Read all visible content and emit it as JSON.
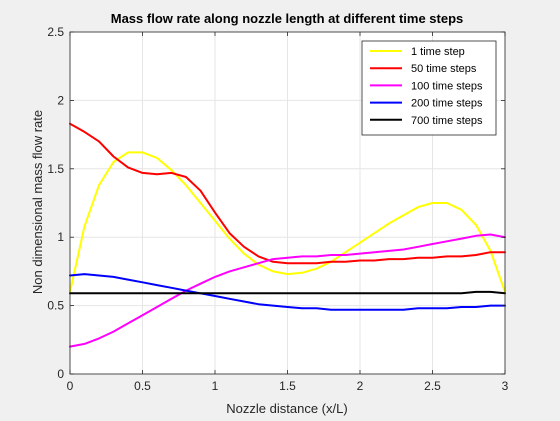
{
  "chart_data": {
    "type": "line",
    "title": "Mass flow rate along nozzle length at different time steps",
    "xlabel": "Nozzle distance (x/L)",
    "ylabel": "Non dimensional mass flow rate",
    "xlim": [
      0,
      3
    ],
    "ylim": [
      0,
      2.5
    ],
    "xticks": [
      "0",
      "0.5",
      "1",
      "1.5",
      "2",
      "2.5",
      "3"
    ],
    "yticks": [
      "0",
      "0.5",
      "1",
      "1.5",
      "2",
      "2.5"
    ],
    "grid": true,
    "legend_position": "top-right",
    "colors": {
      "figure_background": "#f0f0f0",
      "axes_background": "#ffffff",
      "grid": "#e6e6e6",
      "axis": "#262626"
    },
    "series": [
      {
        "name": "1 time step",
        "color": "#ffff00",
        "x": [
          0,
          0.1,
          0.2,
          0.3,
          0.4,
          0.5,
          0.6,
          0.7,
          0.8,
          0.9,
          1.0,
          1.1,
          1.2,
          1.3,
          1.4,
          1.5,
          1.6,
          1.7,
          1.8,
          1.9,
          2.0,
          2.1,
          2.2,
          2.3,
          2.4,
          2.5,
          2.6,
          2.7,
          2.8,
          2.9,
          3.0
        ],
        "y": [
          0.6,
          1.08,
          1.38,
          1.55,
          1.62,
          1.62,
          1.58,
          1.49,
          1.38,
          1.25,
          1.12,
          0.99,
          0.88,
          0.8,
          0.75,
          0.73,
          0.74,
          0.77,
          0.82,
          0.89,
          0.96,
          1.03,
          1.1,
          1.16,
          1.22,
          1.25,
          1.25,
          1.2,
          1.09,
          0.9,
          0.6
        ]
      },
      {
        "name": "50 time steps",
        "color": "#ff0000",
        "x": [
          0,
          0.1,
          0.2,
          0.3,
          0.4,
          0.5,
          0.6,
          0.7,
          0.8,
          0.9,
          1.0,
          1.1,
          1.2,
          1.3,
          1.4,
          1.5,
          1.6,
          1.7,
          1.8,
          1.9,
          2.0,
          2.1,
          2.2,
          2.3,
          2.4,
          2.5,
          2.6,
          2.7,
          2.8,
          2.9,
          3.0
        ],
        "y": [
          1.83,
          1.77,
          1.7,
          1.59,
          1.51,
          1.47,
          1.46,
          1.47,
          1.44,
          1.34,
          1.18,
          1.03,
          0.93,
          0.86,
          0.82,
          0.81,
          0.81,
          0.81,
          0.82,
          0.82,
          0.83,
          0.83,
          0.84,
          0.84,
          0.85,
          0.85,
          0.86,
          0.86,
          0.87,
          0.89,
          0.89
        ]
      },
      {
        "name": "100 time steps",
        "color": "#ff00ff",
        "x": [
          0,
          0.1,
          0.2,
          0.3,
          0.4,
          0.5,
          0.6,
          0.7,
          0.8,
          0.9,
          1.0,
          1.1,
          1.2,
          1.3,
          1.4,
          1.5,
          1.6,
          1.7,
          1.8,
          1.9,
          2.0,
          2.1,
          2.2,
          2.3,
          2.4,
          2.5,
          2.6,
          2.7,
          2.8,
          2.9,
          3.0
        ],
        "y": [
          0.2,
          0.22,
          0.26,
          0.31,
          0.37,
          0.43,
          0.49,
          0.55,
          0.61,
          0.66,
          0.71,
          0.75,
          0.78,
          0.81,
          0.84,
          0.85,
          0.86,
          0.86,
          0.87,
          0.87,
          0.88,
          0.89,
          0.9,
          0.91,
          0.93,
          0.95,
          0.97,
          0.99,
          1.01,
          1.02,
          1.0
        ]
      },
      {
        "name": "200 time steps",
        "color": "#0000ff",
        "x": [
          0,
          0.1,
          0.2,
          0.3,
          0.4,
          0.5,
          0.6,
          0.7,
          0.8,
          0.9,
          1.0,
          1.1,
          1.2,
          1.3,
          1.4,
          1.5,
          1.6,
          1.7,
          1.8,
          1.9,
          2.0,
          2.1,
          2.2,
          2.3,
          2.4,
          2.5,
          2.6,
          2.7,
          2.8,
          2.9,
          3.0
        ],
        "y": [
          0.72,
          0.73,
          0.72,
          0.71,
          0.69,
          0.67,
          0.65,
          0.63,
          0.61,
          0.59,
          0.57,
          0.55,
          0.53,
          0.51,
          0.5,
          0.49,
          0.48,
          0.48,
          0.47,
          0.47,
          0.47,
          0.47,
          0.47,
          0.47,
          0.48,
          0.48,
          0.48,
          0.49,
          0.49,
          0.5,
          0.5
        ]
      },
      {
        "name": "700 time steps",
        "color": "#000000",
        "x": [
          0,
          0.1,
          0.2,
          0.3,
          0.4,
          0.5,
          0.6,
          0.7,
          0.8,
          0.9,
          1.0,
          1.1,
          1.2,
          1.3,
          1.4,
          1.5,
          1.6,
          1.7,
          1.8,
          1.9,
          2.0,
          2.1,
          2.2,
          2.3,
          2.4,
          2.5,
          2.6,
          2.7,
          2.8,
          2.9,
          3.0
        ],
        "y": [
          0.59,
          0.59,
          0.59,
          0.59,
          0.59,
          0.59,
          0.59,
          0.59,
          0.59,
          0.59,
          0.59,
          0.59,
          0.59,
          0.59,
          0.59,
          0.59,
          0.59,
          0.59,
          0.59,
          0.59,
          0.59,
          0.59,
          0.59,
          0.59,
          0.59,
          0.59,
          0.59,
          0.59,
          0.6,
          0.6,
          0.59
        ]
      }
    ]
  }
}
